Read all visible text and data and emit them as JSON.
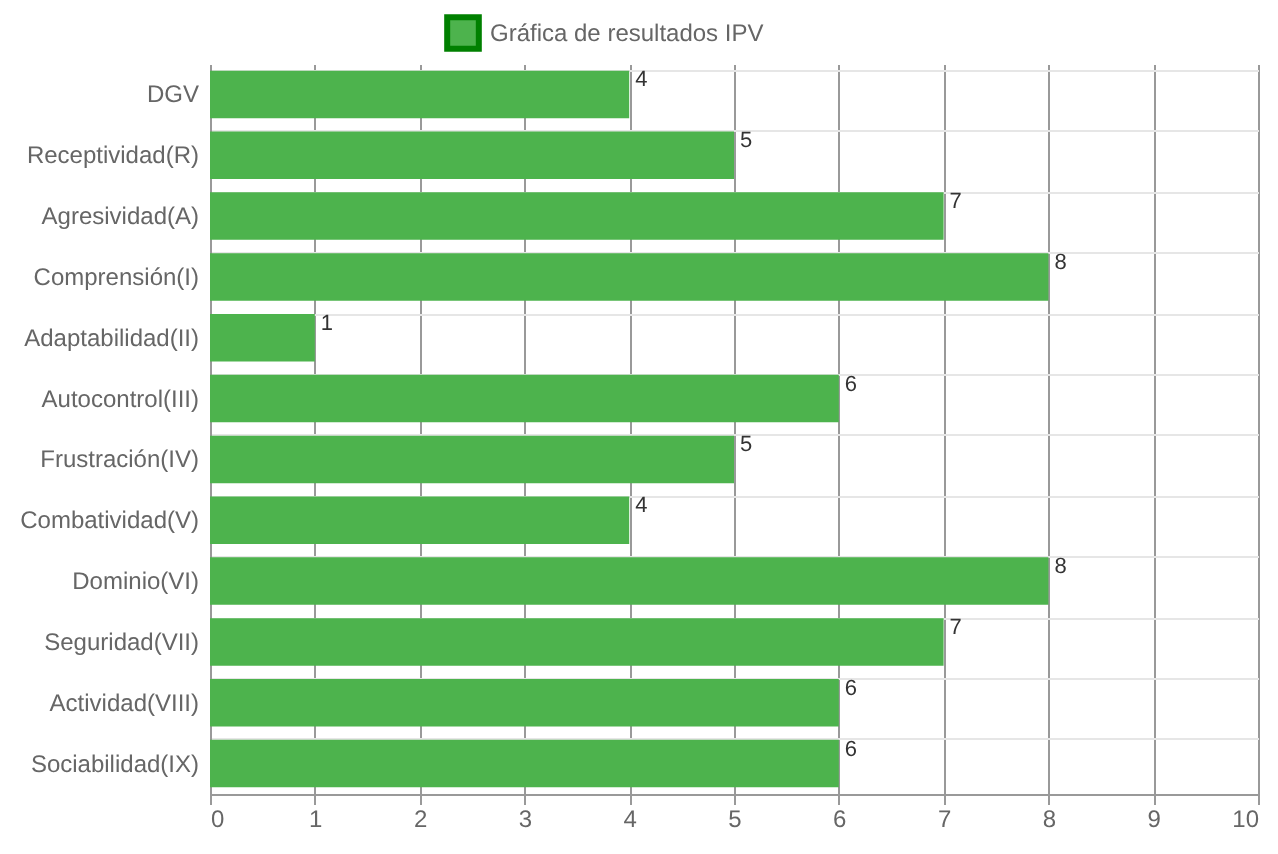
{
  "chart_data": {
    "type": "bar",
    "orientation": "horizontal",
    "categories": [
      "DGV",
      "Receptividad(R)",
      "Agresividad(A)",
      "Comprensión(I)",
      "Adaptabilidad(II)",
      "Autocontrol(III)",
      "Frustración(IV)",
      "Combatividad(V)",
      "Dominio(VI)",
      "Seguridad(VII)",
      "Actividad(VIII)",
      "Sociabilidad(IX)"
    ],
    "series": [
      {
        "name": "Gráfica de resultados IPV",
        "color": "#4db34d",
        "values": [
          4,
          5,
          7,
          8,
          1,
          6,
          5,
          4,
          8,
          7,
          6,
          6
        ]
      }
    ],
    "xlim": [
      0,
      10
    ],
    "xticks": [
      0,
      1,
      2,
      3,
      4,
      5,
      6,
      7,
      8,
      9,
      10
    ],
    "grid": true,
    "legend": "top",
    "data_labels": true
  }
}
